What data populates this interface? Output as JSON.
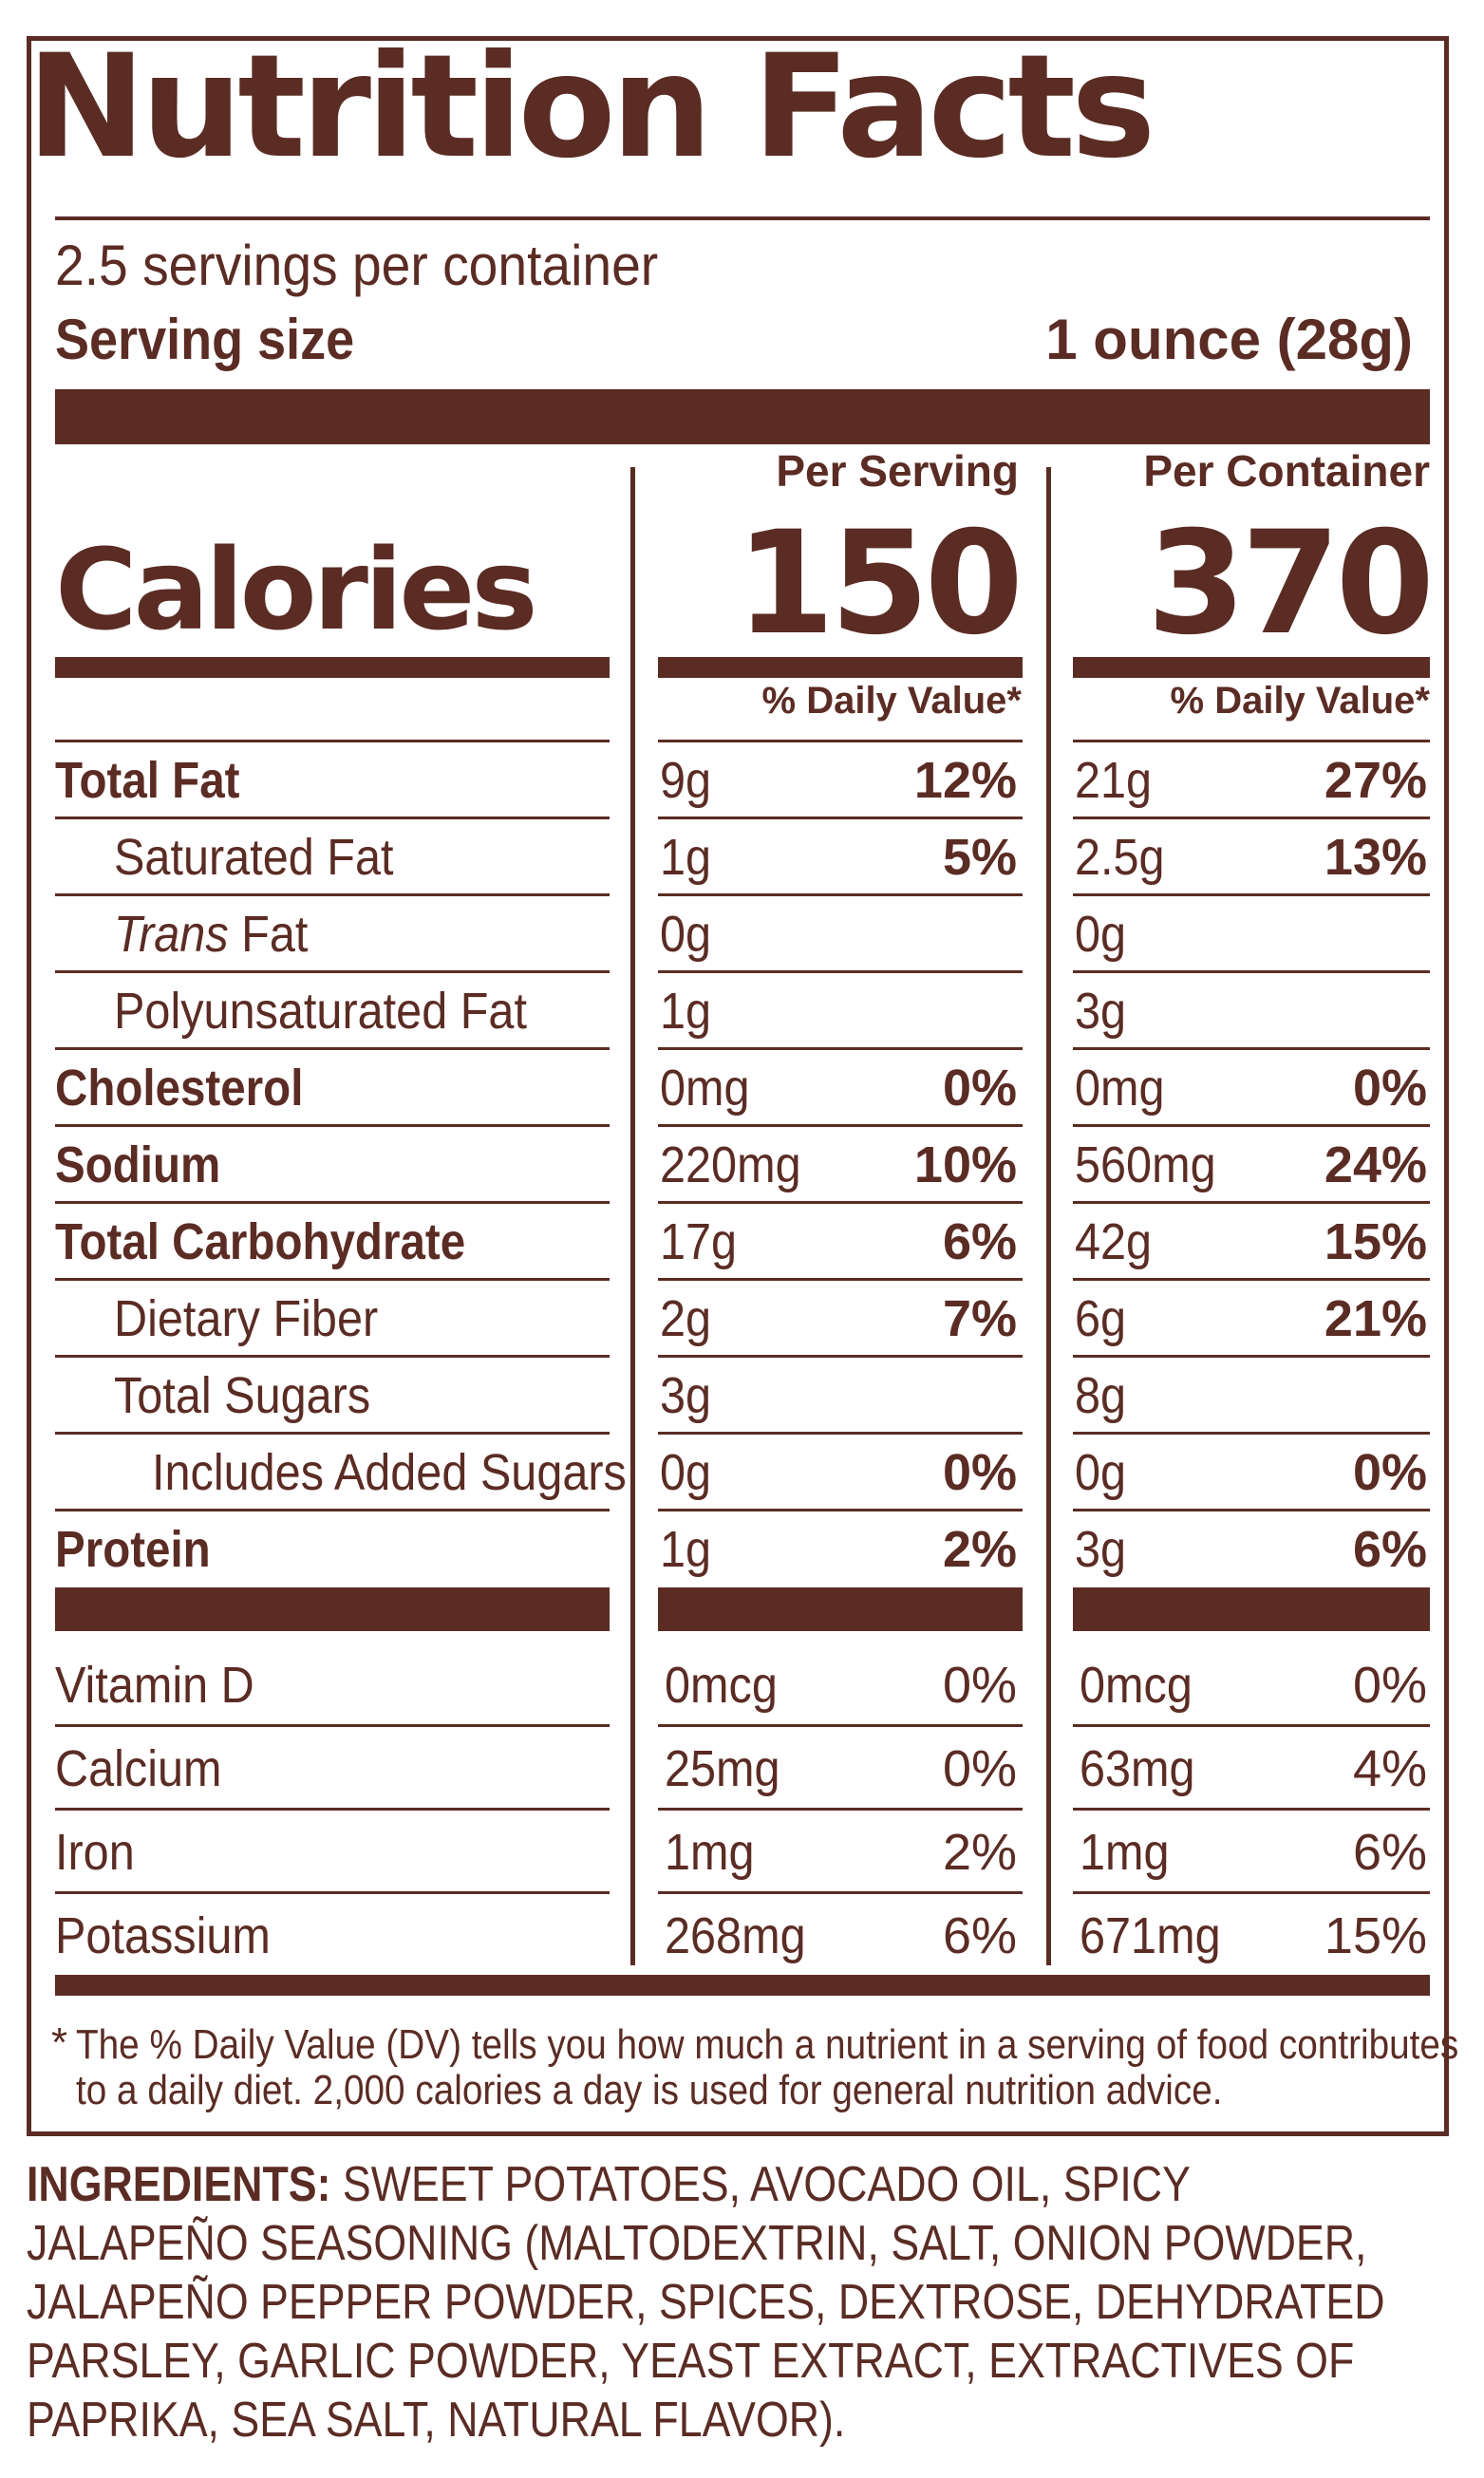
{
  "label": {
    "title": "Nutrition Facts",
    "servings_per_container": "2.5 servings per container",
    "serving_size_label": "Serving size",
    "serving_size_value": "1 ounce (28g)",
    "col_per_serving": "Per Serving",
    "col_per_container": "Per Container",
    "calories_label": "Calories",
    "calories_per_serving": "150",
    "calories_per_container": "370",
    "daily_value_header": "% Daily Value*",
    "nutrients": [
      {
        "name": "Total Fat",
        "bold": true,
        "indent": 0,
        "s_amt": "9g",
        "s_pct": "12%",
        "c_amt": "21g",
        "c_pct": "27%"
      },
      {
        "name": "Saturated Fat",
        "bold": false,
        "indent": 1,
        "s_amt": "1g",
        "s_pct": "5%",
        "c_amt": "2.5g",
        "c_pct": "13%"
      },
      {
        "name_italic": "Trans",
        "name": " Fat",
        "bold": false,
        "indent": 1,
        "s_amt": "0g",
        "s_pct": "",
        "c_amt": "0g",
        "c_pct": ""
      },
      {
        "name": "Polyunsaturated Fat",
        "bold": false,
        "indent": 1,
        "s_amt": "1g",
        "s_pct": "",
        "c_amt": "3g",
        "c_pct": ""
      },
      {
        "name": "Cholesterol",
        "bold": true,
        "indent": 0,
        "s_amt": "0mg",
        "s_pct": "0%",
        "c_amt": "0mg",
        "c_pct": "0%"
      },
      {
        "name": "Sodium",
        "bold": true,
        "indent": 0,
        "s_amt": "220mg",
        "s_pct": "10%",
        "c_amt": "560mg",
        "c_pct": "24%"
      },
      {
        "name": "Total Carbohydrate",
        "bold": true,
        "indent": 0,
        "s_amt": "17g",
        "s_pct": "6%",
        "c_amt": "42g",
        "c_pct": "15%"
      },
      {
        "name": "Dietary Fiber",
        "bold": false,
        "indent": 1,
        "s_amt": "2g",
        "s_pct": "7%",
        "c_amt": "6g",
        "c_pct": "21%"
      },
      {
        "name": "Total Sugars",
        "bold": false,
        "indent": 1,
        "s_amt": "3g",
        "s_pct": "",
        "c_amt": "8g",
        "c_pct": ""
      },
      {
        "name": "Includes Added Sugars",
        "bold": false,
        "indent": 2,
        "s_amt": "0g",
        "s_pct": "0%",
        "c_amt": "0g",
        "c_pct": "0%"
      },
      {
        "name": "Protein",
        "bold": true,
        "indent": 0,
        "s_amt": "1g",
        "s_pct": "2%",
        "c_amt": "3g",
        "c_pct": "6%"
      }
    ],
    "vitamins": [
      {
        "name": "Vitamin D",
        "s_amt": "0mcg",
        "s_pct": "0%",
        "c_amt": "0mcg",
        "c_pct": "0%"
      },
      {
        "name": "Calcium",
        "s_amt": "25mg",
        "s_pct": "0%",
        "c_amt": "63mg",
        "c_pct": "4%"
      },
      {
        "name": "Iron",
        "s_amt": "1mg",
        "s_pct": "2%",
        "c_amt": "1mg",
        "c_pct": "6%"
      },
      {
        "name": "Potassium",
        "s_amt": "268mg",
        "s_pct": "6%",
        "c_amt": "671mg",
        "c_pct": "15%"
      }
    ],
    "footnote_star": "*",
    "footnote_line1": "The % Daily Value (DV) tells you how much a nutrient in a serving of food contributes",
    "footnote_line2": "to a daily diet. 2,000 calories a day is used for general nutrition advice."
  },
  "ingredients": {
    "heading": "INGREDIENTS:",
    "text": " SWEET POTATOES, AVOCADO OIL, SPICY JALAPEÑO SEASONING (MALTODEXTRIN, SALT, ONION POWDER, JALAPEÑO PEPPER POWDER, SPICES, DEXTROSE, DEHYDRATED PARSLEY, GARLIC POWDER, YEAST EXTRACT, EXTRACTIVES OF PAPRIKA, SEA SALT, NATURAL FLAVOR)."
  },
  "colors": {
    "ink": "#5a2c24",
    "background": "#ffffff"
  }
}
